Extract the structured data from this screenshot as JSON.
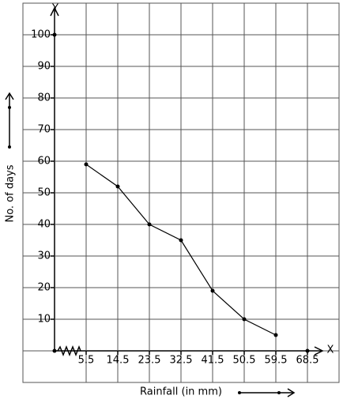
{
  "chart_data": {
    "type": "line",
    "x_label": "Rainfall (in mm)",
    "y_label": "No. of days",
    "x_axis_name": "X",
    "y_axis_name": "Y",
    "x": [
      5.5,
      14.5,
      23.5,
      32.5,
      41.5,
      50.5,
      59.5
    ],
    "series": [
      {
        "color": "#000000",
        "values": [
          59,
          52,
          40,
          35,
          19,
          10,
          5
        ]
      }
    ],
    "xlim": [
      5.5,
      68.5
    ],
    "xticks": [
      5.5,
      14.5,
      23.5,
      32.5,
      41.5,
      50.5,
      59.5,
      68.5
    ],
    "ylim": [
      0,
      100
    ],
    "yticks": [
      10,
      20,
      30,
      40,
      50,
      60,
      70,
      80,
      90,
      100
    ],
    "grid": true
  }
}
